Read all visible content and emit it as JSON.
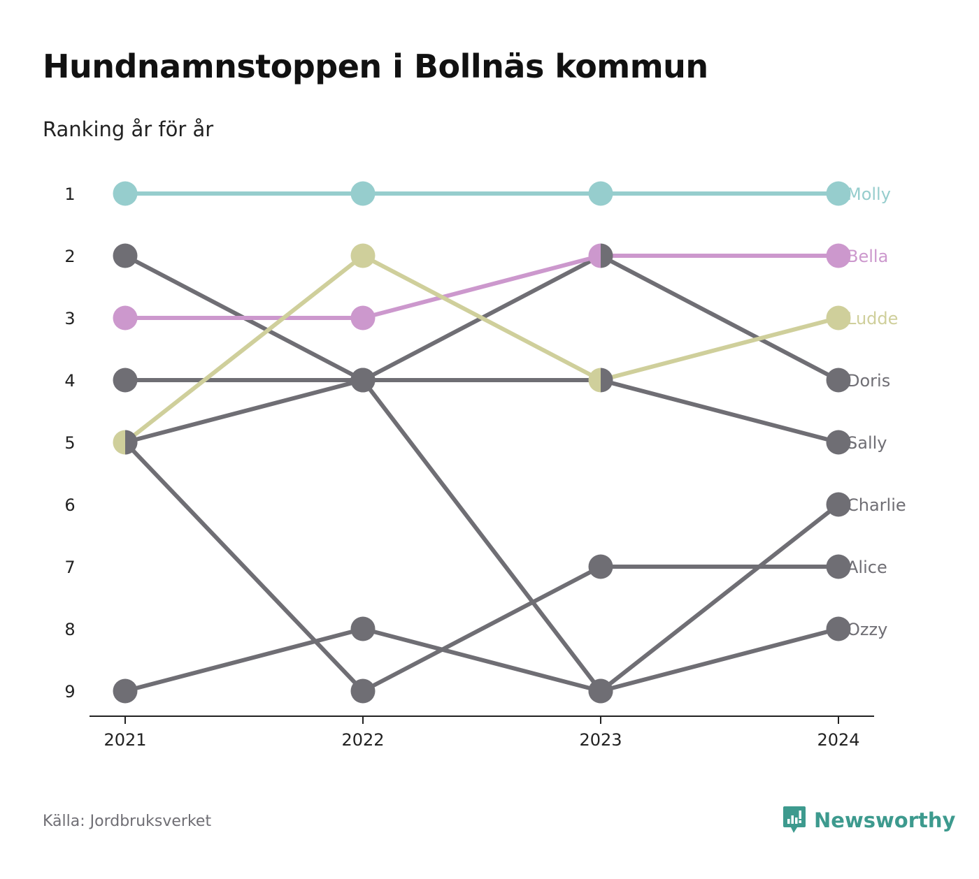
{
  "title": "Hundnamnstoppen i Bollnäs kommun",
  "subtitle": "Ranking år för år",
  "source": "Källa: Jordbruksverket",
  "brand": {
    "name": "Newsworthy",
    "icon": "newsworthy-logo-icon",
    "color": "#3d9a8e"
  },
  "chart_data": {
    "type": "line",
    "x": [
      "2021",
      "2022",
      "2023",
      "2024"
    ],
    "ylim": [
      1,
      9
    ],
    "y_reversed": true,
    "y_ticks": [
      "1",
      "2",
      "3",
      "4",
      "5",
      "6",
      "7",
      "8",
      "9"
    ],
    "grid": false,
    "series": [
      {
        "name": "Molly",
        "color": "#96cdcd",
        "values": [
          1,
          1,
          1,
          1
        ]
      },
      {
        "name": "Bella",
        "color": "#cc98cd",
        "values": [
          3,
          3,
          2,
          2
        ]
      },
      {
        "name": "Ludde",
        "color": "#cfcf9b",
        "values": [
          5,
          2,
          4,
          3
        ]
      },
      {
        "name": "Doris",
        "color": "#6f6e74",
        "values": [
          4,
          4,
          2,
          4
        ]
      },
      {
        "name": "Sally",
        "color": "#6f6e74",
        "values": [
          2,
          4,
          4,
          5
        ]
      },
      {
        "name": "Charlie",
        "color": "#6f6e74",
        "values": [
          5,
          4,
          9,
          6
        ]
      },
      {
        "name": "Alice",
        "color": "#6f6e74",
        "values": [
          5,
          9,
          7,
          7
        ]
      },
      {
        "name": "Ozzy",
        "color": "#6f6e74",
        "values": [
          9,
          8,
          9,
          8
        ]
      }
    ]
  }
}
